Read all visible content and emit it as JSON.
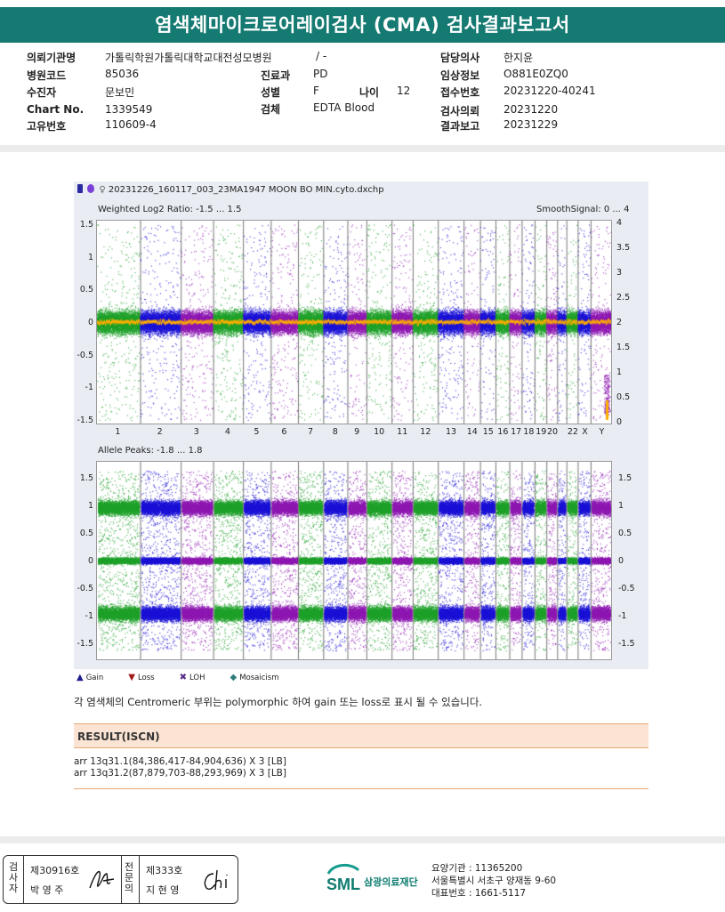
{
  "title": "염색체마이크로어레이검사 (CMA) 검사결과보고서",
  "report_info": {
    "requesting_institution": {
      "label": "의뢰기관명",
      "value": "가톨릭학원가톨릭대학교대전성모병원"
    },
    "ward": {
      "value": "/ -"
    },
    "doctor": {
      "label": "담당의사",
      "value": "한지윤"
    },
    "hospital_code": {
      "label": "병원코드",
      "value": "85036"
    },
    "department": {
      "label": "진료과",
      "value": "PD"
    },
    "clinical_info": {
      "label": "임상정보",
      "value": "O881E0ZQ0"
    },
    "patient": {
      "label": "수진자",
      "value": "문보민"
    },
    "sex": {
      "label": "성별",
      "value": "F"
    },
    "age": {
      "label": "나이",
      "value": "12"
    },
    "receipt_no": {
      "label": "접수번호",
      "value": "20231220-40241"
    },
    "chart_no": {
      "label": "Chart No.",
      "value": "1339549"
    },
    "specimen": {
      "label": "검체",
      "value": "EDTA Blood"
    },
    "request_date": {
      "label": "검사의뢰",
      "value": "20231220"
    },
    "unique_no": {
      "label": "고유번호",
      "value": "110609-4"
    },
    "report_date": {
      "label": "결과보고",
      "value": "20231229"
    }
  },
  "chart": {
    "file_name": "20231226_160117_003_23MA1947 MOON BO MIN.cyto.dxchp",
    "top_plot": {
      "label": "Weighted Log2 Ratio: -1.5 ... 1.5",
      "right_label": "SmoothSignal: 0 ... 4",
      "left_ticks": [
        "1.5",
        "1",
        "0.5",
        "0",
        "-0.5",
        "-1",
        "-1.5"
      ],
      "right_ticks": [
        "4",
        "3.5",
        "3",
        "2.5",
        "2",
        "1.5",
        "1",
        "0.5",
        "0"
      ]
    },
    "bottom_plot": {
      "label": "Allele Peaks: -1.8 ... 1.8",
      "left_ticks": [
        "1.5",
        "1",
        "0.5",
        "0",
        "-0.5",
        "-1",
        "-1.5"
      ],
      "right_ticks": [
        "1.5",
        "1",
        "0.5",
        "0",
        "-0.5",
        "-1",
        "-1.5"
      ]
    },
    "chromosome_labels": [
      "1",
      "2",
      "3",
      "4",
      "5",
      "6",
      "7",
      "8",
      "9",
      "10",
      "11",
      "12",
      "13",
      "14",
      "15",
      "16",
      "17",
      "18",
      "19",
      "20",
      "22",
      "X",
      "Y"
    ],
    "colors": {
      "green": "#1fa12a",
      "blue": "#1b12d6",
      "purple": "#8e18b2",
      "orange": "#ffae00"
    },
    "legend": [
      {
        "symbol": "▲",
        "label": "Gain",
        "color": "#1c1c8c"
      },
      {
        "symbol": "▼",
        "label": "Loss",
        "color": "#a01818"
      },
      {
        "symbol": "✖",
        "label": "LOH",
        "color": "#5a2a8a"
      },
      {
        "symbol": "◆",
        "label": "Mosaicism",
        "color": "#2f7d7d"
      }
    ]
  },
  "note": "각 염색체의 Centromeric 부위는 polymorphic 하여 gain 또는 loss로 표시 될 수 있습니다.",
  "result": {
    "header": "RESULT(ISCN)",
    "lines": [
      "arr 13q31.1(84,386,417-84,904,636) X 3 [LB]",
      "arr 13q31.2(87,879,703-88,293,969) X 3 [LB]"
    ]
  },
  "signature": {
    "examiner_label": "검사자",
    "examiner_id": "제30916호",
    "examiner_name": "박 영 주",
    "specialist_label": "전문의",
    "specialist_id": "제333호",
    "specialist_name": "지 현 영"
  },
  "lab": {
    "logo_text": "SML",
    "name": "삼광의료재단",
    "care_institution": "요양기관 : 11365200",
    "address": "서울특별시 서초구 양재동 9-60",
    "phone": "대표번호 : 1661-5117"
  }
}
